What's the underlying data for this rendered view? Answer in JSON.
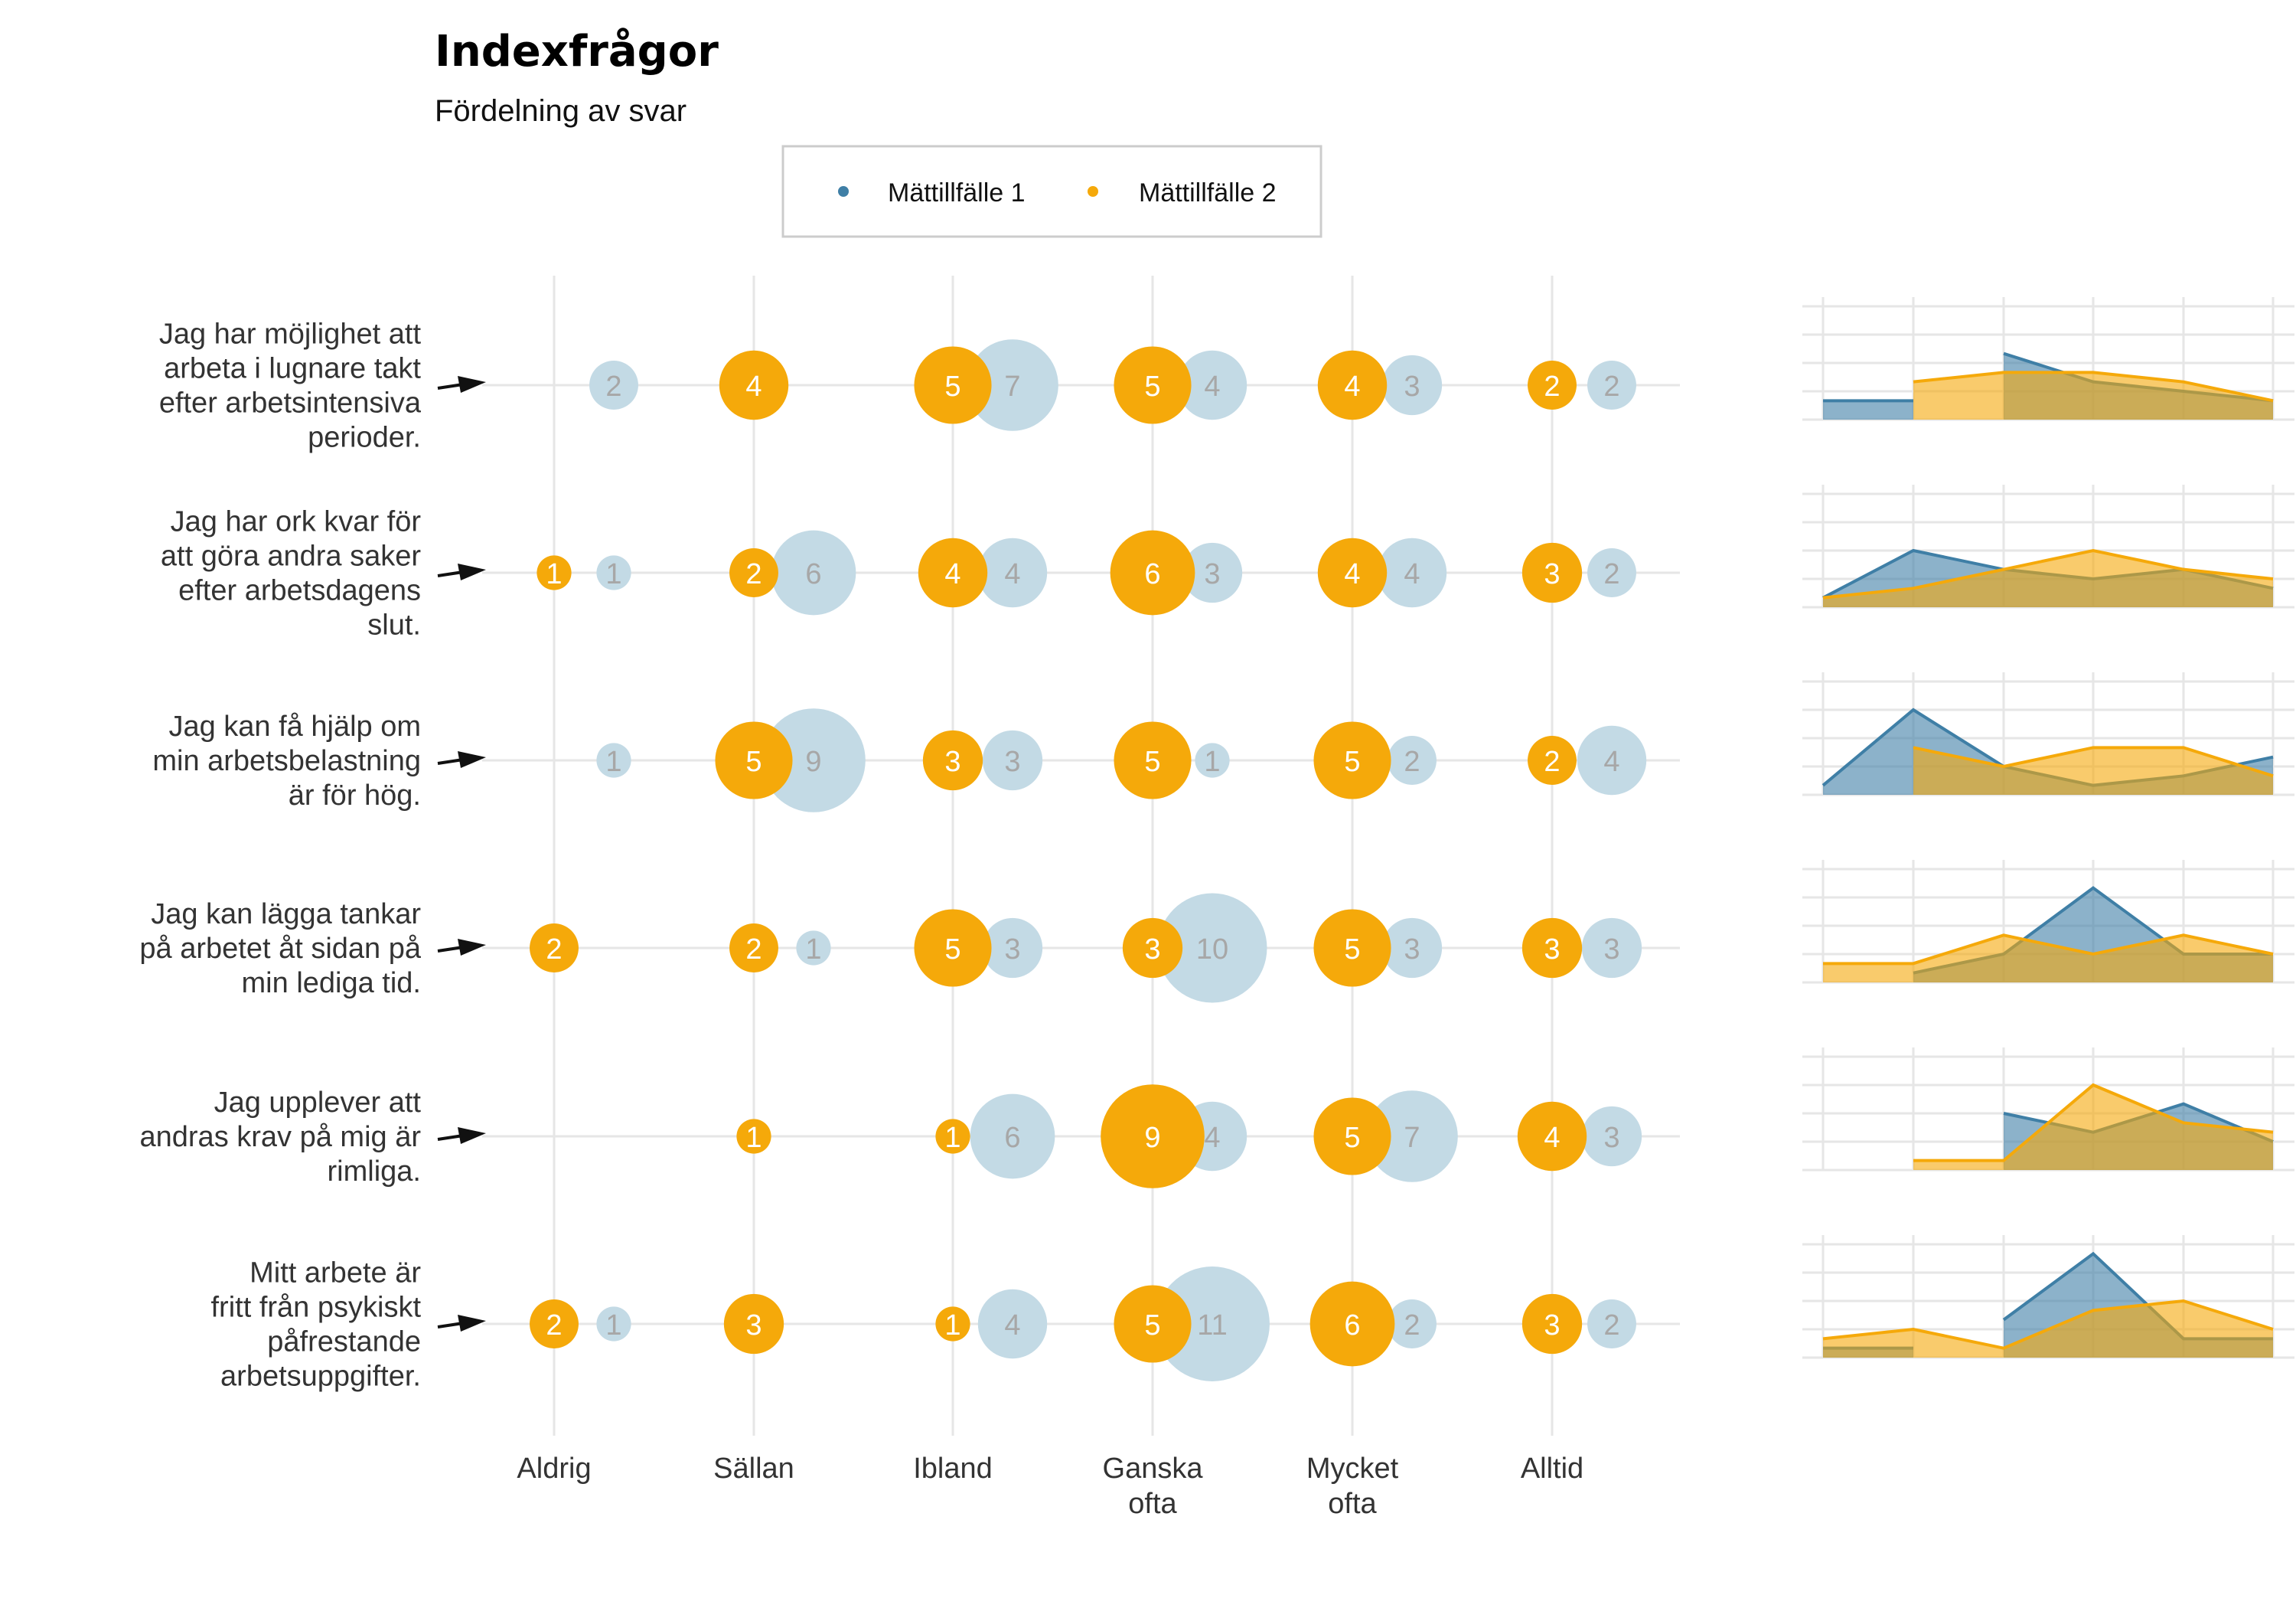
{
  "chart_data": {
    "type": "bubble",
    "title": "Indexfrågor",
    "subtitle": "Fördelning av svar",
    "categories": [
      "Aldrig",
      "Sällan",
      "Ibland",
      "Ganska ofta",
      "Mycket ofta",
      "Alltid"
    ],
    "legend_position": "top",
    "series": [
      {
        "name": "Mättillfälle 1",
        "color": "#3f7fa6",
        "bubble_color": "#c3dae5"
      },
      {
        "name": "Mättillfälle 2",
        "color": "#f5a90a",
        "bubble_color": "#f5a90a"
      }
    ],
    "questions": [
      {
        "lines": [
          "Jag har möjlighet att",
          "arbeta i lugnare takt",
          "efter arbetsintensiva",
          "perioder."
        ],
        "m1": [
          2,
          null,
          7,
          4,
          3,
          2
        ],
        "m2": [
          null,
          4,
          5,
          5,
          4,
          2
        ]
      },
      {
        "lines": [
          "Jag har ork kvar för",
          "att göra andra saker",
          "efter arbetsdagens",
          "slut."
        ],
        "m1": [
          1,
          6,
          4,
          3,
          4,
          2
        ],
        "m2": [
          1,
          2,
          4,
          6,
          4,
          3
        ]
      },
      {
        "lines": [
          "Jag kan få hjälp om",
          "min arbetsbelastning",
          "är för hög."
        ],
        "m1": [
          1,
          9,
          3,
          1,
          2,
          4
        ],
        "m2": [
          null,
          5,
          3,
          5,
          5,
          2
        ]
      },
      {
        "lines": [
          "Jag kan lägga tankar",
          "på arbetet åt sidan på",
          "min lediga tid."
        ],
        "m1": [
          null,
          1,
          3,
          10,
          3,
          3
        ],
        "m2": [
          2,
          2,
          5,
          3,
          5,
          3
        ]
      },
      {
        "lines": [
          "Jag upplever att",
          "andras krav på mig är",
          "rimliga."
        ],
        "m1": [
          null,
          null,
          6,
          4,
          7,
          3
        ],
        "m2": [
          null,
          1,
          1,
          9,
          5,
          4
        ]
      },
      {
        "lines": [
          "Mitt arbete är",
          "fritt från psykiskt",
          "påfrestande",
          "arbetsuppgifter."
        ],
        "m1": [
          1,
          null,
          4,
          11,
          2,
          2
        ],
        "m2": [
          2,
          3,
          1,
          5,
          6,
          3
        ]
      }
    ]
  }
}
